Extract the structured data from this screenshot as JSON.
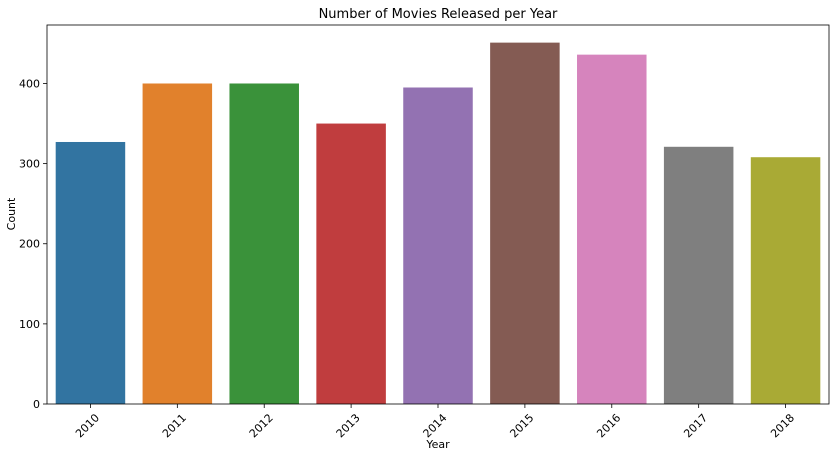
{
  "chart_data": {
    "type": "bar",
    "title": "Number of Movies Released per Year",
    "xlabel": "Year",
    "ylabel": "Count",
    "categories": [
      "2010",
      "2011",
      "2012",
      "2013",
      "2014",
      "2015",
      "2016",
      "2017",
      "2018"
    ],
    "values": [
      327,
      400,
      400,
      350,
      395,
      451,
      436,
      321,
      308
    ],
    "colors": [
      "#3274a1",
      "#e1812c",
      "#3a923a",
      "#c03d3e",
      "#9372b2",
      "#845b53",
      "#d684bd",
      "#7f7f7f",
      "#a9aa35"
    ],
    "ylim": [
      0,
      473
    ],
    "yticks": [
      0,
      100,
      200,
      300,
      400
    ],
    "grid": false,
    "legend": "none"
  }
}
